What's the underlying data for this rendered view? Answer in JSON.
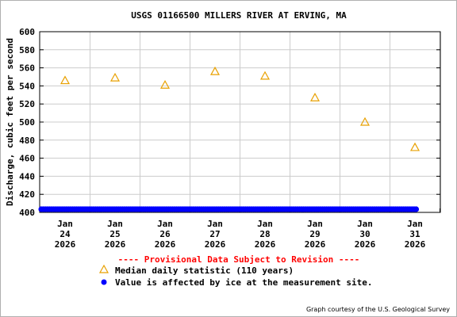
{
  "chart_data": {
    "type": "scatter",
    "title": "USGS 01166500 MILLERS RIVER AT ERVING, MA",
    "ylabel": "Discharge, cubic feet per second",
    "xlabel": "",
    "ylim": [
      400,
      600
    ],
    "yticks": [
      400,
      420,
      440,
      460,
      480,
      500,
      520,
      540,
      560,
      580,
      600
    ],
    "xticks": [
      {
        "month": "Jan",
        "day": "24",
        "year": "2026"
      },
      {
        "month": "Jan",
        "day": "25",
        "year": "2026"
      },
      {
        "month": "Jan",
        "day": "26",
        "year": "2026"
      },
      {
        "month": "Jan",
        "day": "27",
        "year": "2026"
      },
      {
        "month": "Jan",
        "day": "28",
        "year": "2026"
      },
      {
        "month": "Jan",
        "day": "29",
        "year": "2026"
      },
      {
        "month": "Jan",
        "day": "30",
        "year": "2026"
      },
      {
        "month": "Jan",
        "day": "31",
        "year": "2026"
      }
    ],
    "grid": true,
    "series": [
      {
        "name": "Median daily statistic (110 years)",
        "marker": "triangle",
        "color": "#e8a000",
        "x": [
          "2026-01-24",
          "2026-01-25",
          "2026-01-26",
          "2026-01-27",
          "2026-01-28",
          "2026-01-29",
          "2026-01-30",
          "2026-01-31"
        ],
        "values": [
          546,
          549,
          541,
          556,
          551,
          527,
          500,
          472
        ]
      },
      {
        "name": "Value is affected by ice at the measurement site.",
        "marker": "dot",
        "color": "#0000ff",
        "x_start": "2026-01-24T00:00",
        "x_end": "2026-01-31T12:00",
        "value": 400
      }
    ]
  },
  "provisional_note": "---- Provisional Data Subject to Revision ----",
  "credit": "Graph courtesy of the U.S. Geological Survey"
}
